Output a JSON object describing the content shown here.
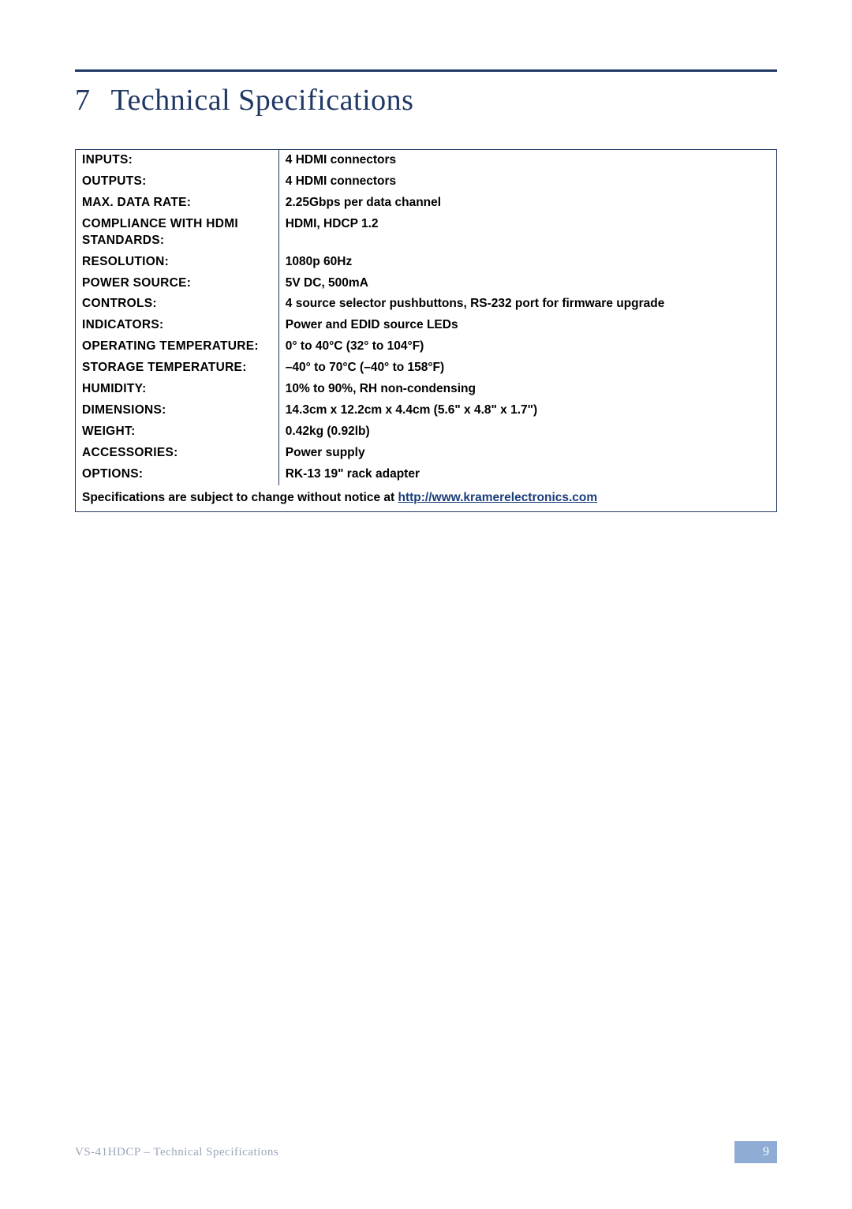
{
  "heading": {
    "number": "7",
    "title": "Technical Specifications"
  },
  "spec_rows": [
    {
      "label": "INPUTS:",
      "value": "4 HDMI connectors"
    },
    {
      "label": "OUTPUTS:",
      "value": "4 HDMI connectors"
    },
    {
      "label": "MAX. DATA RATE:",
      "value": "2.25Gbps per data channel"
    },
    {
      "label": "COMPLIANCE WITH HDMI STANDARDS:",
      "value": "HDMI, HDCP 1.2"
    },
    {
      "label": "RESOLUTION:",
      "value": "1080p 60Hz"
    },
    {
      "label": "POWER SOURCE:",
      "value": "5V DC, 500mA"
    },
    {
      "label": "CONTROLS:",
      "value": "4 source selector pushbuttons, RS-232 port for firmware upgrade"
    },
    {
      "label": "INDICATORS:",
      "value": "Power and EDID source LEDs"
    },
    {
      "label": "OPERATING TEMPERATURE:",
      "value": "0° to 40°C (32° to 104°F)"
    },
    {
      "label": "STORAGE TEMPERATURE:",
      "value": "–40° to 70°C (–40° to 158°F)"
    },
    {
      "label": "HUMIDITY:",
      "value": "10% to 90%, RH non-condensing"
    },
    {
      "label": "DIMENSIONS:",
      "value": "14.3cm x 12.2cm x 4.4cm (5.6\" x 4.8\" x 1.7\")"
    },
    {
      "label": "WEIGHT:",
      "value": "0.42kg (0.92lb)"
    },
    {
      "label": "ACCESSORIES:",
      "value": "Power supply"
    },
    {
      "label": "OPTIONS:",
      "value": "RK-13 19\" rack adapter"
    }
  ],
  "footer_row": {
    "prefix": "Specifications are subject to change without notice at ",
    "link_text": "http://www.kramerelectronics.com"
  },
  "bottom": {
    "left": "VS-41HDCP – Technical Specifications",
    "page": "9"
  },
  "colors": {
    "brand": "#203864",
    "pagebox": "#8eacd4",
    "footer_text": "#9aa5bb"
  }
}
